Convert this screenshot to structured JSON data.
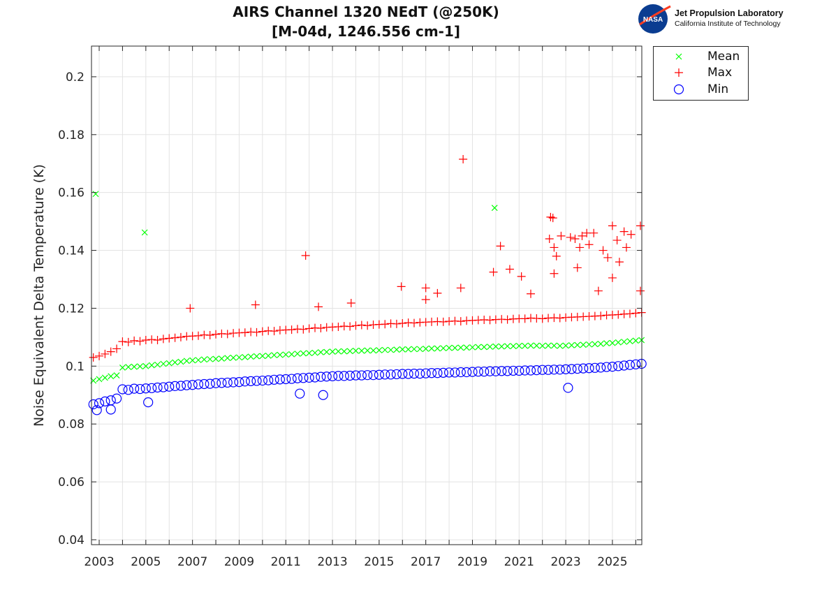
{
  "chart_data": {
    "type": "scatter",
    "title": [
      "AIRS Channel 1320 NEdT (@250K)",
      "[M-04d, 1246.556 cm-1]"
    ],
    "xlabel": "",
    "ylabel": "Noise Equivalent Delta Temperature (K)",
    "xlim": [
      2002.67,
      2026.26
    ],
    "ylim": [
      0.0383,
      0.2106
    ],
    "grid": true,
    "legend_position": "outside-top-right",
    "xticks": [
      2003,
      2004,
      2005,
      2006,
      2007,
      2008,
      2009,
      2010,
      2011,
      2012,
      2013,
      2014,
      2015,
      2016,
      2017,
      2018,
      2019,
      2020,
      2021,
      2022,
      2023,
      2024,
      2025,
      2026
    ],
    "xtick_labels": [
      "2003",
      "2005",
      "2007",
      "2009",
      "2011",
      "2013",
      "2015",
      "2017",
      "2019",
      "2021",
      "2023",
      "2025"
    ],
    "yticks": [
      0.04,
      0.06,
      0.08,
      0.1,
      0.12,
      0.14,
      0.16,
      0.18,
      0.2
    ],
    "ytick_labels": [
      "0.04",
      "0.06",
      "0.08",
      "0.1",
      "0.12",
      "0.14",
      "0.16",
      "0.18",
      "0.2"
    ],
    "x": [
      2002.75,
      2003.0,
      2003.25,
      2003.5,
      2003.75,
      2004.0,
      2004.25,
      2004.5,
      2004.75,
      2005.0,
      2005.25,
      2005.5,
      2005.75,
      2006.0,
      2006.25,
      2006.5,
      2006.75,
      2007.0,
      2007.25,
      2007.5,
      2007.75,
      2008.0,
      2008.25,
      2008.5,
      2008.75,
      2009.0,
      2009.25,
      2009.5,
      2009.75,
      2010.0,
      2010.25,
      2010.5,
      2010.75,
      2011.0,
      2011.25,
      2011.5,
      2011.75,
      2012.0,
      2012.25,
      2012.5,
      2012.75,
      2013.0,
      2013.25,
      2013.5,
      2013.75,
      2014.0,
      2014.25,
      2014.5,
      2014.75,
      2015.0,
      2015.25,
      2015.5,
      2015.75,
      2016.0,
      2016.25,
      2016.5,
      2016.75,
      2017.0,
      2017.25,
      2017.5,
      2017.75,
      2018.0,
      2018.25,
      2018.5,
      2018.75,
      2019.0,
      2019.25,
      2019.5,
      2019.75,
      2020.0,
      2020.25,
      2020.5,
      2020.75,
      2021.0,
      2021.25,
      2021.5,
      2021.75,
      2022.0,
      2022.25,
      2022.5,
      2022.75,
      2023.0,
      2023.25,
      2023.5,
      2023.75,
      2024.0,
      2024.25,
      2024.5,
      2024.75,
      2025.0,
      2025.25,
      2025.5,
      2025.75,
      2026.0,
      2026.25
    ],
    "series": [
      {
        "name": "Mean",
        "marker": "x",
        "color": "#00ff00",
        "values": [
          0.095,
          0.0955,
          0.096,
          0.0965,
          0.0968,
          0.0995,
          0.0997,
          0.0998,
          0.0999,
          0.1,
          0.1003,
          0.1005,
          0.1008,
          0.101,
          0.1013,
          0.1015,
          0.1018,
          0.102,
          0.1021,
          0.1023,
          0.1024,
          0.1025,
          0.1026,
          0.1028,
          0.1029,
          0.103,
          0.1031,
          0.1033,
          0.1034,
          0.1035,
          0.1036,
          0.1038,
          0.1039,
          0.104,
          0.1041,
          0.1043,
          0.1044,
          0.1045,
          0.1046,
          0.1048,
          0.1049,
          0.105,
          0.1051,
          0.1051,
          0.1052,
          0.1053,
          0.1053,
          0.1054,
          0.1054,
          0.1055,
          0.1056,
          0.1056,
          0.1057,
          0.1058,
          0.1058,
          0.1059,
          0.1059,
          0.106,
          0.1061,
          0.1061,
          0.1062,
          0.1063,
          0.1063,
          0.1064,
          0.1064,
          0.1065,
          0.1066,
          0.1066,
          0.1067,
          0.1068,
          0.1068,
          0.1069,
          0.1069,
          0.107,
          0.107,
          0.1071,
          0.1071,
          0.107,
          0.1071,
          0.1071,
          0.107,
          0.1071,
          0.1072,
          0.1073,
          0.1074,
          0.1075,
          0.1076,
          0.1077,
          0.1079,
          0.108,
          0.1082,
          0.1084,
          0.1086,
          0.1088,
          0.109
        ],
        "outliers": [
          [
            2002.85,
            0.1595
          ],
          [
            2004.95,
            0.1462
          ],
          [
            2019.95,
            0.1547
          ]
        ]
      },
      {
        "name": "Max",
        "marker": "+",
        "color": "#ff0000",
        "values": [
          0.103,
          0.1035,
          0.1042,
          0.105,
          0.106,
          0.1085,
          0.1083,
          0.1088,
          0.1086,
          0.109,
          0.1092,
          0.109,
          0.1094,
          0.1096,
          0.1098,
          0.11,
          0.1103,
          0.1104,
          0.1105,
          0.1108,
          0.1107,
          0.111,
          0.1112,
          0.1111,
          0.1114,
          0.1115,
          0.1116,
          0.1118,
          0.1117,
          0.112,
          0.1122,
          0.1121,
          0.1124,
          0.1125,
          0.1126,
          0.1128,
          0.1127,
          0.113,
          0.1132,
          0.1131,
          0.1134,
          0.1135,
          0.1136,
          0.1138,
          0.1137,
          0.114,
          0.1142,
          0.114,
          0.1143,
          0.1144,
          0.1145,
          0.1147,
          0.1146,
          0.1148,
          0.115,
          0.1149,
          0.1151,
          0.1152,
          0.1153,
          0.1154,
          0.1153,
          0.1155,
          0.1156,
          0.1155,
          0.1157,
          0.1158,
          0.1159,
          0.116,
          0.1159,
          0.1161,
          0.1162,
          0.1161,
          0.1163,
          0.1164,
          0.1164,
          0.1166,
          0.1165,
          0.1164,
          0.1166,
          0.1167,
          0.1166,
          0.1168,
          0.1169,
          0.117,
          0.1171,
          0.1172,
          0.1173,
          0.1174,
          0.1176,
          0.1177,
          0.1178,
          0.118,
          0.1181,
          0.1183,
          0.1185
        ],
        "outliers": [
          [
            2006.9,
            0.12
          ],
          [
            2009.7,
            0.1212
          ],
          [
            2011.85,
            0.1382
          ],
          [
            2012.4,
            0.1205
          ],
          [
            2013.8,
            0.1218
          ],
          [
            2015.95,
            0.1275
          ],
          [
            2017.0,
            0.127
          ],
          [
            2017.0,
            0.123
          ],
          [
            2017.5,
            0.1252
          ],
          [
            2018.5,
            0.127
          ],
          [
            2018.6,
            0.1715
          ],
          [
            2019.9,
            0.1325
          ],
          [
            2020.2,
            0.1415
          ],
          [
            2020.6,
            0.1335
          ],
          [
            2021.1,
            0.131
          ],
          [
            2021.5,
            0.125
          ],
          [
            2022.3,
            0.144
          ],
          [
            2022.35,
            0.1515
          ],
          [
            2022.45,
            0.1512
          ],
          [
            2022.5,
            0.141
          ],
          [
            2022.5,
            0.132
          ],
          [
            2022.6,
            0.138
          ],
          [
            2022.8,
            0.145
          ],
          [
            2023.2,
            0.1445
          ],
          [
            2023.4,
            0.144
          ],
          [
            2023.5,
            0.134
          ],
          [
            2023.6,
            0.141
          ],
          [
            2023.7,
            0.145
          ],
          [
            2023.9,
            0.146
          ],
          [
            2024.0,
            0.142
          ],
          [
            2024.2,
            0.146
          ],
          [
            2024.4,
            0.126
          ],
          [
            2024.6,
            0.14
          ],
          [
            2024.8,
            0.1375
          ],
          [
            2025.0,
            0.1485
          ],
          [
            2025.0,
            0.1305
          ],
          [
            2025.2,
            0.1435
          ],
          [
            2025.3,
            0.136
          ],
          [
            2025.5,
            0.1465
          ],
          [
            2025.6,
            0.141
          ],
          [
            2025.8,
            0.1455
          ],
          [
            2026.2,
            0.1485
          ],
          [
            2026.2,
            0.126
          ]
        ]
      },
      {
        "name": "Min",
        "marker": "o",
        "color": "#0000ff",
        "values": [
          0.0868,
          0.0872,
          0.0878,
          0.0882,
          0.0888,
          0.092,
          0.0918,
          0.0922,
          0.0921,
          0.0923,
          0.0924,
          0.0926,
          0.0927,
          0.0929,
          0.0931,
          0.0932,
          0.0934,
          0.0935,
          0.0937,
          0.0938,
          0.0939,
          0.0941,
          0.0942,
          0.0943,
          0.0944,
          0.0945,
          0.0947,
          0.0948,
          0.0949,
          0.095,
          0.0951,
          0.0953,
          0.0954,
          0.0955,
          0.0956,
          0.0958,
          0.0959,
          0.096,
          0.0961,
          0.0963,
          0.0964,
          0.0965,
          0.0966,
          0.0966,
          0.0967,
          0.0968,
          0.0968,
          0.0969,
          0.0969,
          0.097,
          0.0971,
          0.0971,
          0.0972,
          0.0973,
          0.0973,
          0.0974,
          0.0974,
          0.0975,
          0.0976,
          0.0976,
          0.0977,
          0.0978,
          0.0978,
          0.0979,
          0.0979,
          0.098,
          0.0981,
          0.0981,
          0.0982,
          0.0982,
          0.0983,
          0.0983,
          0.0984,
          0.0984,
          0.0985,
          0.0985,
          0.0986,
          0.0987,
          0.0987,
          0.0988,
          0.0988,
          0.0989,
          0.099,
          0.0991,
          0.0992,
          0.0993,
          0.0994,
          0.0995,
          0.0997,
          0.0998,
          0.1,
          0.1002,
          0.1004,
          0.1006,
          0.1008
        ],
        "outliers": [
          [
            2002.9,
            0.0848
          ],
          [
            2003.5,
            0.085
          ],
          [
            2005.1,
            0.0875
          ],
          [
            2011.6,
            0.0905
          ],
          [
            2012.6,
            0.09
          ],
          [
            2023.1,
            0.0925
          ]
        ]
      }
    ]
  },
  "logo": {
    "agency": "NASA",
    "line1": "Jet Propulsion Laboratory",
    "line2": "California Institute of Technology"
  }
}
